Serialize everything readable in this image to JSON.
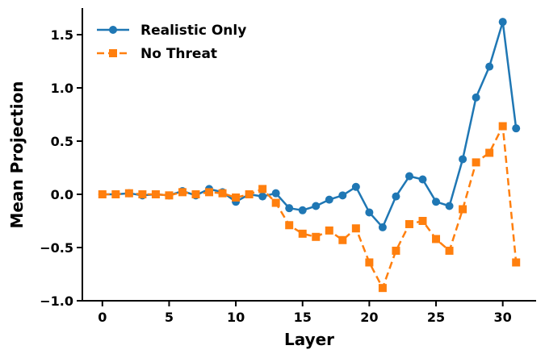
{
  "chart_data": {
    "type": "line",
    "title": "",
    "xlabel": "Layer",
    "ylabel": "Mean Projection",
    "xlim": [
      -1.5,
      32.5
    ],
    "ylim": [
      -1.0,
      1.75
    ],
    "xticks": [
      0,
      5,
      10,
      15,
      20,
      25,
      30
    ],
    "xtick_labels": [
      "0",
      "5",
      "10",
      "15",
      "20",
      "25",
      "30"
    ],
    "yticks": [
      -1.0,
      -0.5,
      0.0,
      0.5,
      1.0,
      1.5
    ],
    "ytick_labels": [
      "−1.0",
      "−0.5",
      "0.0",
      "0.5",
      "1.0",
      "1.5"
    ],
    "grid": false,
    "legend_position": "top-left",
    "x": [
      0,
      1,
      2,
      3,
      4,
      5,
      6,
      7,
      8,
      9,
      10,
      11,
      12,
      13,
      14,
      15,
      16,
      17,
      18,
      19,
      20,
      21,
      22,
      23,
      24,
      25,
      26,
      27,
      28,
      29,
      30,
      31
    ],
    "series": [
      {
        "name": "Realistic Only",
        "color": "#1f77b4",
        "marker": "circle",
        "linestyle": "solid",
        "values": [
          0.0,
          0.0,
          0.01,
          -0.01,
          0.0,
          -0.01,
          0.03,
          -0.01,
          0.05,
          0.02,
          -0.07,
          0.0,
          -0.02,
          0.01,
          -0.13,
          -0.15,
          -0.11,
          -0.05,
          -0.01,
          0.07,
          -0.17,
          -0.31,
          -0.02,
          0.17,
          0.14,
          -0.07,
          -0.11,
          0.33,
          0.91,
          1.2,
          1.62,
          0.62
        ]
      },
      {
        "name": "No Threat",
        "color": "#ff7f0e",
        "marker": "square",
        "linestyle": "dashed",
        "values": [
          0.0,
          0.0,
          0.01,
          0.0,
          0.0,
          -0.01,
          0.02,
          0.0,
          0.02,
          0.01,
          -0.03,
          0.0,
          0.05,
          -0.08,
          -0.29,
          -0.37,
          -0.4,
          -0.34,
          -0.43,
          -0.32,
          -0.64,
          -0.88,
          -0.53,
          -0.28,
          -0.25,
          -0.42,
          -0.53,
          -0.14,
          0.3,
          0.39,
          0.64,
          -0.64
        ]
      }
    ]
  }
}
